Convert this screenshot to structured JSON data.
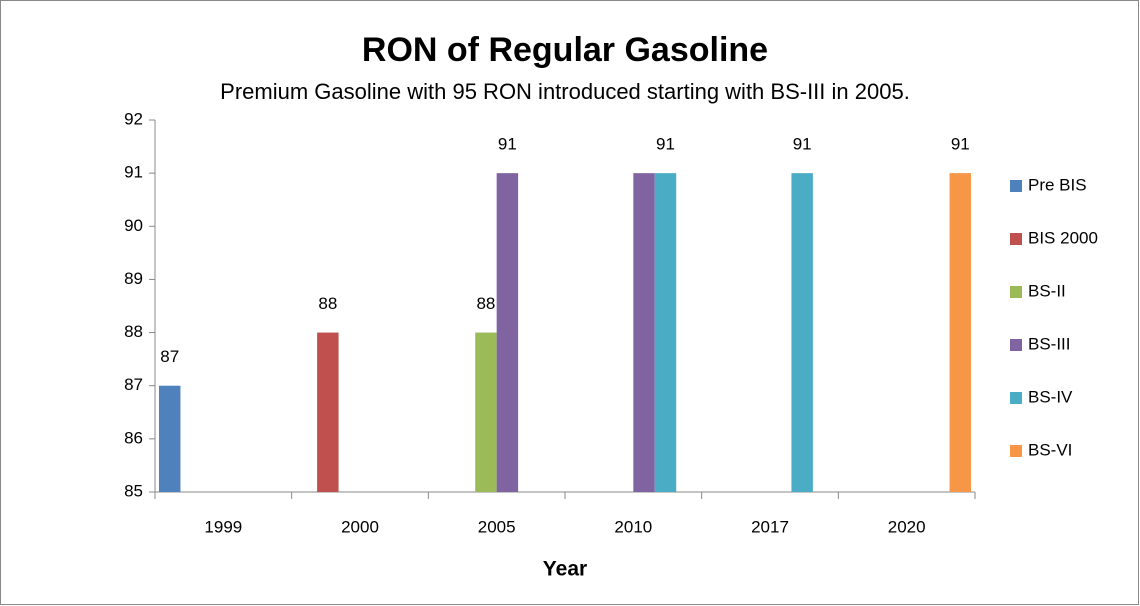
{
  "chart_data": {
    "type": "bar",
    "title": "RON of Regular Gasoline",
    "subtitle": "Premium Gasoline with 95 RON introduced starting with BS-III in 2005.",
    "x_label": "Year",
    "categories": [
      "1999",
      "2000",
      "2005",
      "2010",
      "2017",
      "2020"
    ],
    "series": [
      {
        "name": "Pre BIS",
        "color": "#4f81bd",
        "values": [
          87,
          null,
          null,
          null,
          null,
          null
        ],
        "value_labels": [
          "87",
          null,
          null,
          null,
          null,
          null
        ]
      },
      {
        "name": "BIS 2000",
        "color": "#c0504d",
        "values": [
          null,
          88,
          null,
          null,
          null,
          null
        ],
        "value_labels": [
          null,
          "88",
          null,
          null,
          null,
          null
        ]
      },
      {
        "name": "BS-II",
        "color": "#9bbb59",
        "values": [
          null,
          null,
          88,
          null,
          null,
          null
        ],
        "value_labels": [
          null,
          null,
          "88",
          null,
          null,
          null
        ]
      },
      {
        "name": "BS-III",
        "color": "#8064a2",
        "values": [
          null,
          null,
          91,
          91,
          null,
          null
        ],
        "value_labels": [
          null,
          null,
          "91",
          null,
          null,
          null
        ]
      },
      {
        "name": "BS-IV",
        "color": "#4bacc6",
        "values": [
          null,
          null,
          null,
          91,
          91,
          null
        ],
        "value_labels": [
          null,
          null,
          null,
          "91",
          "91",
          null
        ]
      },
      {
        "name": "BS-VI",
        "color": "#f79646",
        "values": [
          null,
          null,
          null,
          null,
          null,
          91
        ],
        "value_labels": [
          null,
          null,
          null,
          null,
          null,
          "91"
        ]
      }
    ],
    "ylim": [
      85,
      92
    ],
    "yticks": [
      85,
      86,
      87,
      88,
      89,
      90,
      91,
      92
    ],
    "grid": false,
    "legend": "right"
  }
}
